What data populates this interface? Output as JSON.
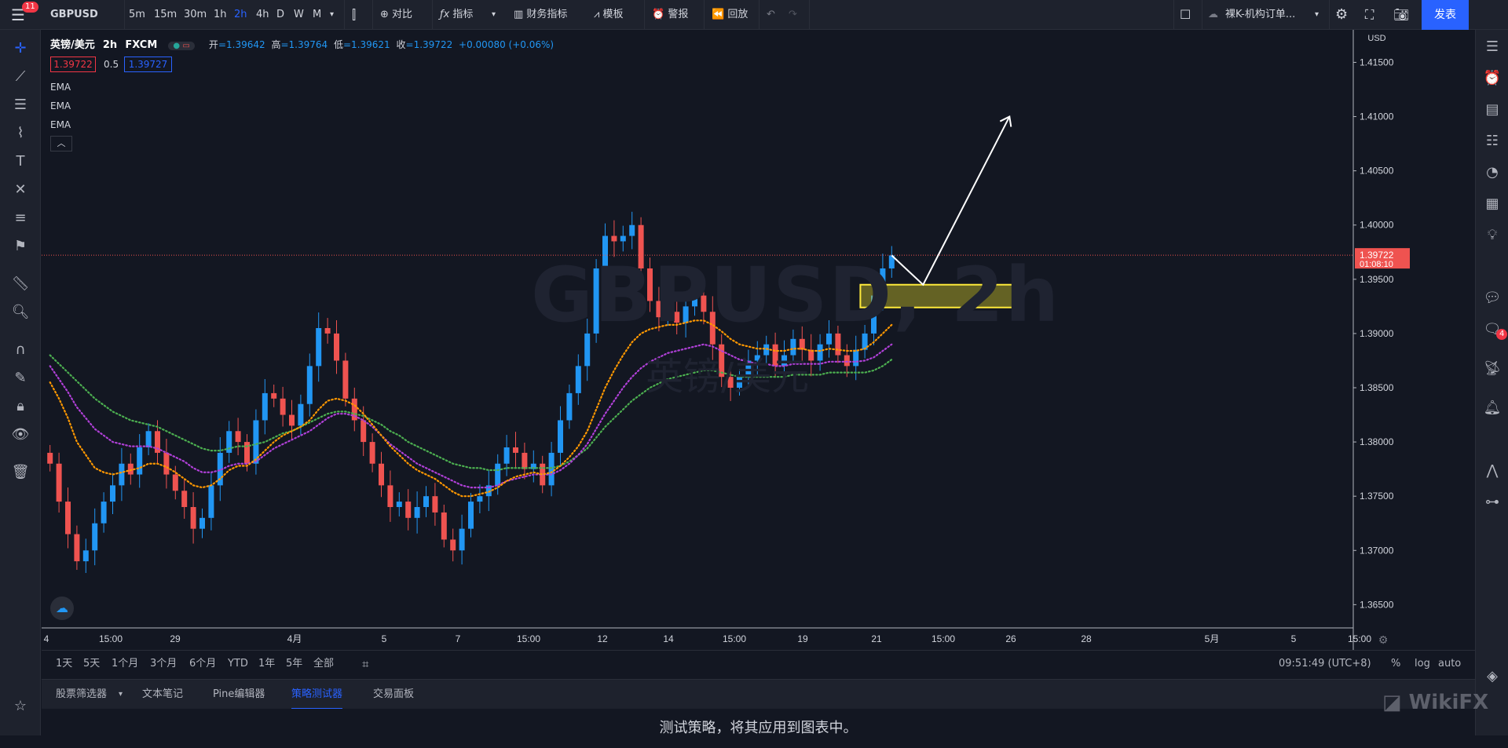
{
  "topbar": {
    "menu_badge": "11",
    "symbol": "GBPUSD",
    "intervals": [
      "5m",
      "15m",
      "30m",
      "1h",
      "2h",
      "4h",
      "D",
      "W",
      "M"
    ],
    "active_interval": "2h",
    "compare": "对比",
    "indicators": "指标",
    "financials": "财务指标",
    "templates": "模板",
    "alerts": "警报",
    "replay": "回放",
    "layout_name": "裸K-机构订单...",
    "publish": "发表"
  },
  "legend": {
    "name": "英镑/美元",
    "interval": "2h",
    "exchange": "FXCM",
    "open_label": "开",
    "open": "=1.39642",
    "high_label": "高",
    "high": "=1.39764",
    "low_label": "低",
    "low": "=1.39621",
    "close_label": "收",
    "close": "=1.39722",
    "change": "+0.00080 (+0.06%)",
    "bid": "1.39722",
    "spread": "0.5",
    "ask": "1.39727",
    "ema_labels": [
      "EMA",
      "EMA",
      "EMA"
    ]
  },
  "watermark": {
    "symbol": "GBPUSD, 2h",
    "name": "英镑/美元"
  },
  "price_axis": {
    "currency": "USD",
    "ticks": [
      "1.41500",
      "1.41000",
      "1.40500",
      "1.40000",
      "1.39500",
      "1.39000",
      "1.38500",
      "1.38000",
      "1.37500",
      "1.37000",
      "1.36500"
    ],
    "current_price": "1.39722",
    "countdown": "01:08:10"
  },
  "time_axis": {
    "ticks": [
      "4",
      "15:00",
      "29",
      "4月",
      "5",
      "7",
      "15:00",
      "12",
      "14",
      "15:00",
      "19",
      "21",
      "15:00",
      "26",
      "28",
      "5月",
      "5",
      "15:00"
    ]
  },
  "bottombar": {
    "ranges": [
      "1天",
      "5天",
      "1个月",
      "3个月",
      "6个月",
      "YTD",
      "1年",
      "5年",
      "全部"
    ],
    "clock": "09:51:49 (UTC+8)",
    "percent": "%",
    "log": "log",
    "auto": "auto"
  },
  "tabs": {
    "items": [
      "股票筛选器",
      "文本笔记",
      "Pine编辑器",
      "策略测试器",
      "交易面板"
    ],
    "active": "策略测试器"
  },
  "panel_message": "测试策略，将其应用到图表中。",
  "right_badge": "4",
  "wikifx": "WikiFX",
  "colors": {
    "bull": "#2196f3",
    "bear": "#ef5350",
    "ema_fast": "#ff9800",
    "ema_mid": "#b040d8",
    "ema_slow": "#4caf50",
    "highlight": "#ffeb3b",
    "accent": "#2962ff"
  },
  "chart_data": {
    "type": "candlestick",
    "symbol": "GBPUSD",
    "interval": "2h",
    "ylim": [
      1.363,
      1.418
    ],
    "closes": [
      1.378,
      1.3745,
      1.3715,
      1.369,
      1.37,
      1.3725,
      1.3745,
      1.376,
      1.378,
      1.377,
      1.3795,
      1.381,
      1.379,
      1.377,
      1.3755,
      1.374,
      1.372,
      1.373,
      1.376,
      1.379,
      1.381,
      1.38,
      1.378,
      1.382,
      1.3845,
      1.384,
      1.3825,
      1.3815,
      1.3835,
      1.387,
      1.3905,
      1.39,
      1.3875,
      1.384,
      1.382,
      1.38,
      1.378,
      1.376,
      1.374,
      1.3745,
      1.373,
      1.374,
      1.375,
      1.3735,
      1.371,
      1.37,
      1.372,
      1.3745,
      1.375,
      1.376,
      1.378,
      1.3795,
      1.379,
      1.3775,
      1.378,
      1.376,
      1.379,
      1.382,
      1.3845,
      1.387,
      1.39,
      1.396,
      1.399,
      1.3985,
      1.399,
      1.4,
      1.396,
      1.393,
      1.3915,
      1.392,
      1.391,
      1.3925,
      1.3935,
      1.392,
      1.389,
      1.386,
      1.385,
      1.386,
      1.3875,
      1.388,
      1.389,
      1.387,
      1.388,
      1.3895,
      1.3885,
      1.3875,
      1.389,
      1.39,
      1.388,
      1.387,
      1.3885,
      1.39,
      1.3935,
      1.396,
      1.3972
    ],
    "ema_fast": [
      1.3855,
      1.384,
      1.3822,
      1.38,
      1.3788,
      1.3776,
      1.3772,
      1.377,
      1.3772,
      1.3774,
      1.3776,
      1.378,
      1.378,
      1.3777,
      1.3772,
      1.3766,
      1.376,
      1.3758,
      1.376,
      1.3766,
      1.3774,
      1.3778,
      1.3778,
      1.3784,
      1.3792,
      1.38,
      1.3806,
      1.381,
      1.3814,
      1.382,
      1.383,
      1.3838,
      1.384,
      1.3838,
      1.3834,
      1.3826,
      1.3816,
      1.3806,
      1.3796,
      1.3788,
      1.378,
      1.3774,
      1.377,
      1.3766,
      1.376,
      1.3754,
      1.375,
      1.375,
      1.3752,
      1.3754,
      1.3758,
      1.3764,
      1.3768,
      1.377,
      1.3772,
      1.377,
      1.3772,
      1.3778,
      1.3786,
      1.3796,
      1.381,
      1.383,
      1.385,
      1.3866,
      1.388,
      1.3892,
      1.39,
      1.3904,
      1.3906,
      1.3908,
      1.3908,
      1.391,
      1.3912,
      1.3912,
      1.3908,
      1.3902,
      1.3895,
      1.389,
      1.3888,
      1.3886,
      1.3886,
      1.3884,
      1.3884,
      1.3886,
      1.3886,
      1.3884,
      1.3884,
      1.3886,
      1.3885,
      1.3884,
      1.3884,
      1.3886,
      1.3892,
      1.39,
      1.3908
    ],
    "ema_mid": [
      1.387,
      1.3858,
      1.3846,
      1.3832,
      1.3822,
      1.3812,
      1.3806,
      1.38,
      1.3798,
      1.3796,
      1.3796,
      1.3796,
      1.3794,
      1.379,
      1.3786,
      1.3782,
      1.3776,
      1.3772,
      1.3772,
      1.3774,
      1.3778,
      1.378,
      1.378,
      1.3782,
      1.3788,
      1.3794,
      1.3798,
      1.3802,
      1.3806,
      1.381,
      1.3816,
      1.3822,
      1.3826,
      1.3826,
      1.3824,
      1.382,
      1.3814,
      1.3806,
      1.3798,
      1.3792,
      1.3786,
      1.378,
      1.3776,
      1.3772,
      1.3768,
      1.3764,
      1.376,
      1.3758,
      1.3758,
      1.3758,
      1.376,
      1.3764,
      1.3766,
      1.3768,
      1.377,
      1.377,
      1.377,
      1.3774,
      1.378,
      1.3788,
      1.3798,
      1.3812,
      1.3826,
      1.3838,
      1.385,
      1.386,
      1.3868,
      1.3874,
      1.3878,
      1.3882,
      1.3884,
      1.3886,
      1.3888,
      1.389,
      1.3888,
      1.3884,
      1.388,
      1.3876,
      1.3874,
      1.3872,
      1.3872,
      1.387,
      1.387,
      1.3872,
      1.3872,
      1.3872,
      1.3872,
      1.3874,
      1.3874,
      1.3874,
      1.3874,
      1.3875,
      1.3878,
      1.3884,
      1.389
    ],
    "ema_slow": [
      1.388,
      1.3872,
      1.3864,
      1.3856,
      1.3848,
      1.384,
      1.3834,
      1.3828,
      1.3824,
      1.382,
      1.3818,
      1.3816,
      1.3814,
      1.381,
      1.3806,
      1.3802,
      1.3798,
      1.3794,
      1.3792,
      1.3792,
      1.3794,
      1.3796,
      1.3796,
      1.3798,
      1.38,
      1.3804,
      1.3808,
      1.381,
      1.3814,
      1.3818,
      1.3822,
      1.3826,
      1.3828,
      1.3828,
      1.3826,
      1.3824,
      1.382,
      1.3816,
      1.381,
      1.3806,
      1.38,
      1.3796,
      1.3792,
      1.3788,
      1.3784,
      1.378,
      1.3778,
      1.3776,
      1.3776,
      1.3774,
      1.3774,
      1.3776,
      1.3776,
      1.3776,
      1.3776,
      1.3776,
      1.3776,
      1.3778,
      1.3782,
      1.3788,
      1.3794,
      1.3804,
      1.3814,
      1.3822,
      1.383,
      1.3838,
      1.3844,
      1.385,
      1.3854,
      1.3858,
      1.386,
      1.3862,
      1.3864,
      1.3866,
      1.3866,
      1.3864,
      1.3862,
      1.386,
      1.386,
      1.386,
      1.386,
      1.386,
      1.386,
      1.3862,
      1.3862,
      1.3862,
      1.3862,
      1.3864,
      1.3864,
      1.3864,
      1.3864,
      1.3864,
      1.3866,
      1.387,
      1.3876
    ],
    "zone": {
      "high": 1.3945,
      "low": 1.3924
    },
    "arrow": {
      "from": 1.3972,
      "via": 1.3945,
      "to": 1.41
    }
  }
}
